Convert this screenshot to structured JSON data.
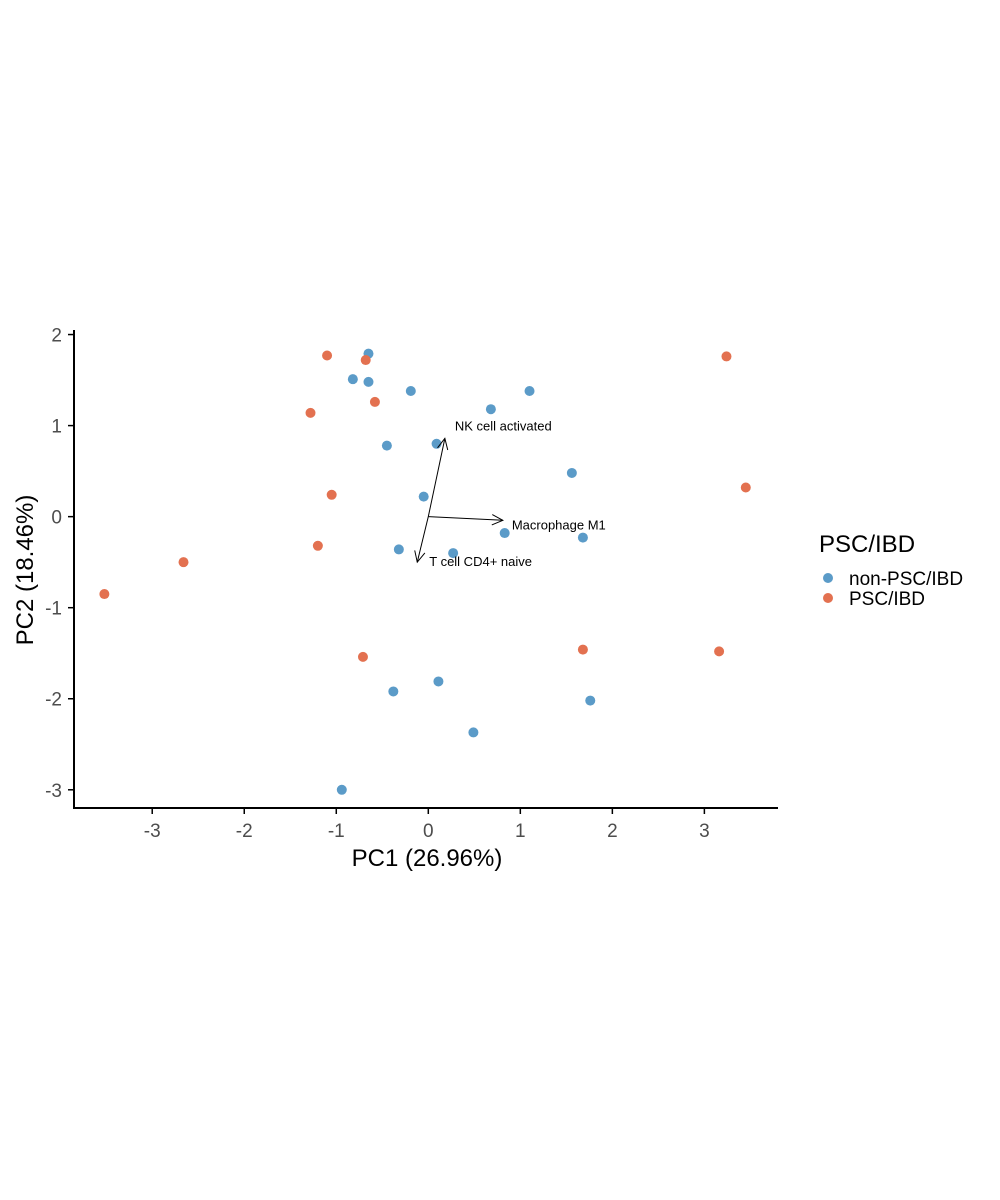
{
  "chart_data": {
    "type": "scatter",
    "title": "",
    "xlabel": "PC1 (26.96%)",
    "ylabel": "PC2 (18.46%)",
    "xlim": [
      -3.85,
      3.8
    ],
    "ylim": [
      -3.2,
      2.05
    ],
    "xticks": [
      -3,
      -2,
      -1,
      0,
      1,
      2,
      3
    ],
    "yticks": [
      -3,
      -2,
      -1,
      0,
      1,
      2
    ],
    "xtick_labels": [
      "-3",
      "-2",
      "-1",
      "0",
      "1",
      "2",
      "3"
    ],
    "ytick_labels": [
      "-3",
      "-2",
      "-1",
      "0",
      "1",
      "2"
    ],
    "grid": false,
    "legend": {
      "title": "PSC/IBD",
      "position": "right"
    },
    "series": [
      {
        "name": "non-PSC/IBD",
        "color": "#5b9bc8",
        "points": [
          {
            "x": -0.65,
            "y": 1.79
          },
          {
            "x": -0.82,
            "y": 1.51
          },
          {
            "x": -0.65,
            "y": 1.48
          },
          {
            "x": -0.19,
            "y": 1.38
          },
          {
            "x": 1.1,
            "y": 1.38
          },
          {
            "x": 0.68,
            "y": 1.18
          },
          {
            "x": -0.45,
            "y": 0.78
          },
          {
            "x": 0.09,
            "y": 0.8
          },
          {
            "x": 1.56,
            "y": 0.48
          },
          {
            "x": -0.05,
            "y": 0.22
          },
          {
            "x": 0.83,
            "y": -0.18
          },
          {
            "x": 1.68,
            "y": -0.23
          },
          {
            "x": -0.32,
            "y": -0.36
          },
          {
            "x": 0.27,
            "y": -0.4
          },
          {
            "x": 0.11,
            "y": -1.81
          },
          {
            "x": -0.38,
            "y": -1.92
          },
          {
            "x": 1.76,
            "y": -2.02
          },
          {
            "x": 0.49,
            "y": -2.37
          },
          {
            "x": -0.94,
            "y": -3.0
          }
        ]
      },
      {
        "name": "PSC/IBD",
        "color": "#e37150",
        "points": [
          {
            "x": -1.1,
            "y": 1.77
          },
          {
            "x": -0.68,
            "y": 1.72
          },
          {
            "x": 3.24,
            "y": 1.76
          },
          {
            "x": -0.58,
            "y": 1.26
          },
          {
            "x": -1.28,
            "y": 1.14
          },
          {
            "x": -1.05,
            "y": 0.24
          },
          {
            "x": 3.45,
            "y": 0.32
          },
          {
            "x": -1.2,
            "y": -0.32
          },
          {
            "x": -2.66,
            "y": -0.5
          },
          {
            "x": -3.52,
            "y": -0.85
          },
          {
            "x": 1.68,
            "y": -1.46
          },
          {
            "x": 3.16,
            "y": -1.48
          },
          {
            "x": -0.71,
            "y": -1.54
          }
        ]
      }
    ],
    "arrows": [
      {
        "label": "NK cell activated",
        "x": 0.18,
        "y": 0.86
      },
      {
        "label": "Macrophage M1",
        "x": 0.81,
        "y": -0.04
      },
      {
        "label": "T cell CD4+ naive",
        "x": -0.12,
        "y": -0.5
      }
    ]
  }
}
